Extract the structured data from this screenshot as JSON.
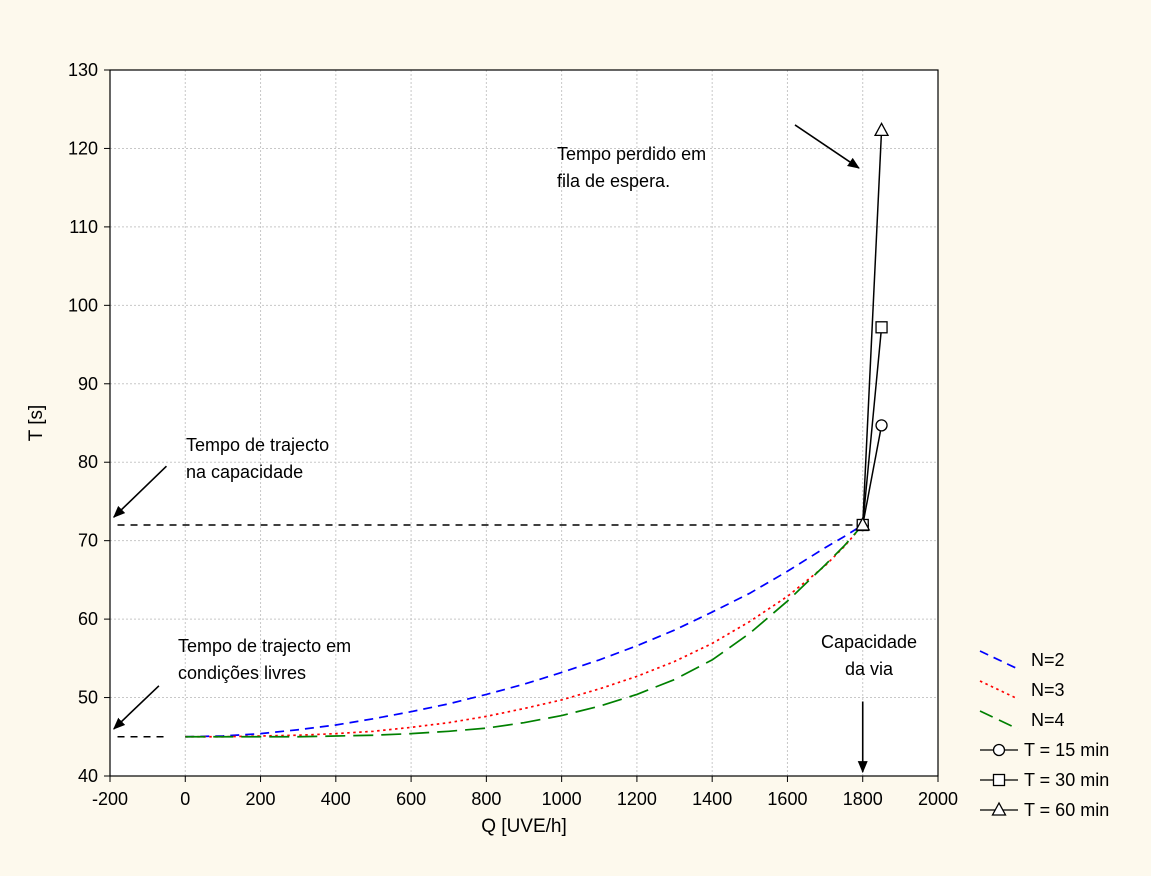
{
  "chart_data": {
    "type": "line",
    "title": "",
    "xlabel": "Q [UVE/h]",
    "ylabel": "T [s]",
    "xlim": [
      -200,
      2000
    ],
    "ylim": [
      40,
      130
    ],
    "x_ticks": [
      -200,
      0,
      200,
      400,
      600,
      800,
      1000,
      1200,
      1400,
      1600,
      1800,
      2000
    ],
    "y_ticks": [
      40,
      50,
      60,
      70,
      80,
      90,
      100,
      110,
      120,
      130
    ],
    "grid": true,
    "legend_position": "right-bottom, outside plot",
    "series": [
      {
        "name": "N=2",
        "style": "dashed",
        "color": "#0000ff",
        "x": [
          0,
          100,
          200,
          300,
          400,
          500,
          600,
          700,
          800,
          900,
          1000,
          1100,
          1200,
          1300,
          1400,
          1500,
          1600,
          1700,
          1750,
          1800
        ],
        "y": [
          45.0,
          45.1,
          45.4,
          45.9,
          46.5,
          47.3,
          48.2,
          49.2,
          50.4,
          51.7,
          53.2,
          54.8,
          56.6,
          58.6,
          60.9,
          63.3,
          66.1,
          69.1,
          70.5,
          72.0
        ]
      },
      {
        "name": "N=3",
        "style": "dotted",
        "color": "#ff0000",
        "x": [
          0,
          100,
          200,
          300,
          400,
          500,
          600,
          700,
          800,
          900,
          1000,
          1100,
          1200,
          1300,
          1400,
          1500,
          1600,
          1700,
          1750,
          1800
        ],
        "y": [
          45.0,
          45.0,
          45.1,
          45.2,
          45.4,
          45.7,
          46.2,
          46.8,
          47.6,
          48.6,
          49.7,
          51.1,
          52.7,
          54.6,
          56.9,
          59.7,
          62.9,
          66.8,
          69.2,
          72.0
        ]
      },
      {
        "name": "N=4",
        "style": "long-dashed",
        "color": "#008000",
        "x": [
          0,
          100,
          200,
          300,
          400,
          500,
          600,
          700,
          800,
          900,
          1000,
          1100,
          1200,
          1300,
          1400,
          1500,
          1600,
          1700,
          1750,
          1800
        ],
        "y": [
          45.0,
          45.0,
          45.0,
          45.0,
          45.1,
          45.2,
          45.4,
          45.7,
          46.1,
          46.8,
          47.7,
          48.9,
          50.4,
          52.3,
          54.8,
          58.2,
          62.3,
          66.9,
          69.3,
          72.0
        ]
      },
      {
        "name": "T = 15 min",
        "style": "solid",
        "marker": "circle",
        "color": "#000000",
        "x": [
          1800,
          1850
        ],
        "y": [
          72.0,
          84.7
        ]
      },
      {
        "name": "T = 30 min",
        "style": "solid",
        "marker": "square",
        "color": "#000000",
        "x": [
          1800,
          1850
        ],
        "y": [
          72.0,
          97.2
        ]
      },
      {
        "name": "T = 60 min",
        "style": "solid",
        "marker": "triangle",
        "color": "#000000",
        "x": [
          1800,
          1850
        ],
        "y": [
          72.0,
          122.3
        ]
      }
    ],
    "reference_lines": [
      {
        "label": "free-flow",
        "style": "dashed",
        "color": "#000000",
        "x": [
          -180,
          -50
        ],
        "y": [
          45,
          45
        ]
      },
      {
        "label": "capacity",
        "style": "dashed",
        "color": "#000000",
        "x": [
          -180,
          1780
        ],
        "y": [
          72,
          72
        ]
      }
    ],
    "annotations": [
      {
        "lines": [
          "Tempo perdido em",
          "fila de espera."
        ],
        "arrow_from": [
          1620,
          123
        ],
        "arrow_to": [
          1790,
          117.5
        ]
      },
      {
        "lines": [
          "Tempo de trajecto",
          "na capacidade"
        ],
        "arrow_from": [
          -50,
          79.5
        ],
        "arrow_to": [
          -190,
          73
        ]
      },
      {
        "lines": [
          "Tempo de trajecto em",
          "condições livres"
        ],
        "arrow_from": [
          -70,
          51.5
        ],
        "arrow_to": [
          -190,
          46
        ]
      },
      {
        "lines": [
          "Capacidade",
          "da via"
        ],
        "arrow_from": [
          1800,
          49.5
        ],
        "arrow_to": [
          1800,
          40.5
        ]
      }
    ]
  }
}
